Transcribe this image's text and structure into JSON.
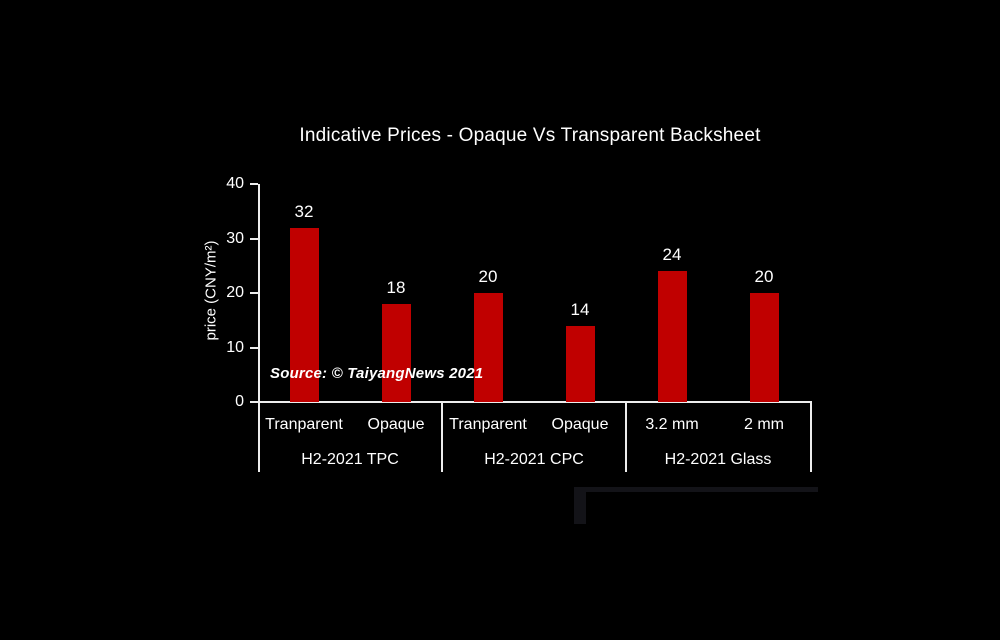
{
  "title": "Indicative Prices - Opaque Vs Transparent Backsheet",
  "source": "Source: © TaiyangNews 2021",
  "chart_data": {
    "type": "bar",
    "title": "Indicative Prices - Opaque Vs Transparent Backsheet",
    "xlabel": "",
    "ylabel": "price (CNY/m²)",
    "ylim": [
      0,
      40
    ],
    "yticks": [
      0,
      10,
      20,
      30,
      40
    ],
    "grid": "off",
    "legend": "none",
    "bar_color": "#C00000",
    "label_color": "#FFFFFF",
    "background_color": "#000000",
    "categories": [
      "Tranparent",
      "Opaque",
      "Tranparent",
      "Opaque",
      "3.2 mm",
      "2 mm"
    ],
    "values": [
      32,
      18,
      20,
      14,
      24,
      20
    ],
    "groups": [
      {
        "label": "H2-2021 TPC",
        "bars": [
          {
            "label": "Tranparent",
            "value": 32
          },
          {
            "label": "Opaque",
            "value": 18
          }
        ]
      },
      {
        "label": "H2-2021 CPC",
        "bars": [
          {
            "label": "Tranparent",
            "value": 20
          },
          {
            "label": "Opaque",
            "value": 14
          }
        ]
      },
      {
        "label": "H2-2021 Glass",
        "bars": [
          {
            "label": "3.2 mm",
            "value": 24
          },
          {
            "label": "2 mm",
            "value": 20
          }
        ]
      }
    ]
  }
}
